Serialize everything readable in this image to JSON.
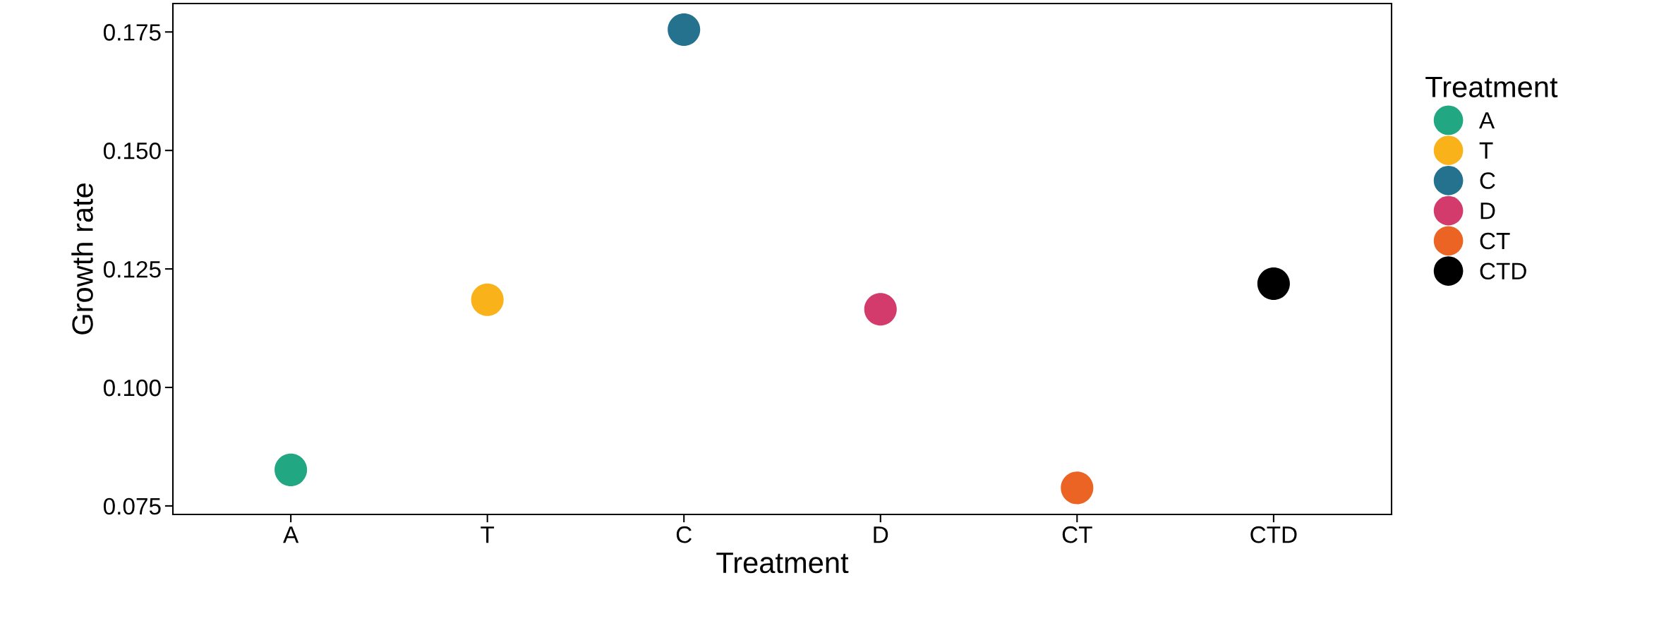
{
  "chart_data": {
    "type": "scatter",
    "xlabel": "Treatment",
    "ylabel": "Growth rate",
    "legend_title": "Treatment",
    "categories": [
      "A",
      "T",
      "C",
      "D",
      "CT",
      "CTD"
    ],
    "series": [
      {
        "name": "A",
        "color": "#21a883",
        "x": [
          "A"
        ],
        "values": [
          0.0826
        ]
      },
      {
        "name": "T",
        "color": "#f9b21a",
        "x": [
          "T"
        ],
        "values": [
          0.1185
        ]
      },
      {
        "name": "C",
        "color": "#25728e",
        "x": [
          "C"
        ],
        "values": [
          0.1755
        ]
      },
      {
        "name": "D",
        "color": "#d23b6b",
        "x": [
          "D"
        ],
        "values": [
          0.1165
        ]
      },
      {
        "name": "CT",
        "color": "#ec6424",
        "x": [
          "CT"
        ],
        "values": [
          0.0788
        ]
      },
      {
        "name": "CTD",
        "color": "#000000",
        "x": [
          "CTD"
        ],
        "values": [
          0.1219
        ]
      }
    ],
    "ylim": [
      0.0732,
      0.181
    ],
    "yticks": [
      {
        "value": 0.075,
        "label": "0.075"
      },
      {
        "value": 0.1,
        "label": "0.100"
      },
      {
        "value": 0.125,
        "label": "0.125"
      },
      {
        "value": 0.15,
        "label": "0.150"
      },
      {
        "value": 0.175,
        "label": "0.175"
      }
    ],
    "grid": false,
    "legend": "right",
    "marker": "circle"
  }
}
